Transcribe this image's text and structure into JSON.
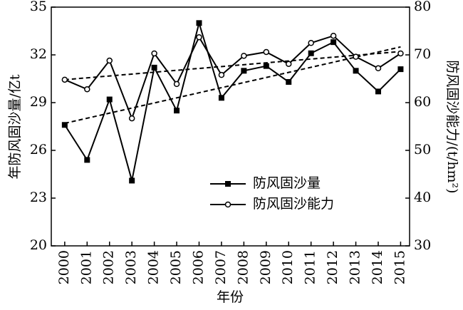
{
  "chart_data": {
    "type": "line",
    "x_label": "年份",
    "y_label": "年防风固沙量/亿t",
    "y2_label": "防风固沙能力/(t/hm²)",
    "x": [
      2000,
      2001,
      2002,
      2003,
      2004,
      2005,
      2006,
      2007,
      2008,
      2009,
      2010,
      2011,
      2012,
      2013,
      2014,
      2015
    ],
    "xlim": [
      1999.4,
      2015.4
    ],
    "xticks": [
      2000,
      2001,
      2002,
      2003,
      2004,
      2005,
      2006,
      2007,
      2008,
      2009,
      2010,
      2011,
      2012,
      2013,
      2014,
      2015
    ],
    "ylim": [
      20,
      35
    ],
    "yticks": [
      20,
      23,
      26,
      29,
      32,
      35
    ],
    "y2lim": [
      30,
      80
    ],
    "y2ticks": [
      30,
      40,
      50,
      60,
      70,
      80
    ],
    "legend": "lower center",
    "series": [
      {
        "name": "防风固沙量",
        "color": "#000000",
        "marker": "square",
        "axis": "y",
        "values": [
          27.6,
          25.4,
          29.2,
          24.1,
          31.2,
          28.5,
          34.0,
          29.3,
          31.0,
          31.3,
          30.3,
          32.1,
          32.8,
          31.0,
          29.7,
          31.1
        ]
      },
      {
        "name": "防风固沙能力",
        "color": "#000000",
        "marker": "circle",
        "axis": "y2",
        "values": [
          64.8,
          62.8,
          68.8,
          56.7,
          70.3,
          63.9,
          73.7,
          65.8,
          69.8,
          70.6,
          68.1,
          72.5,
          74.0,
          69.6,
          67.2,
          70.3
        ]
      }
    ],
    "trendlines": [
      {
        "axis": "y",
        "x": [
          2000,
          2015
        ],
        "values": [
          27.7,
          32.5
        ]
      },
      {
        "axis": "y2",
        "x": [
          2000,
          2015
        ],
        "values": [
          64.8,
          70.7
        ]
      }
    ]
  }
}
